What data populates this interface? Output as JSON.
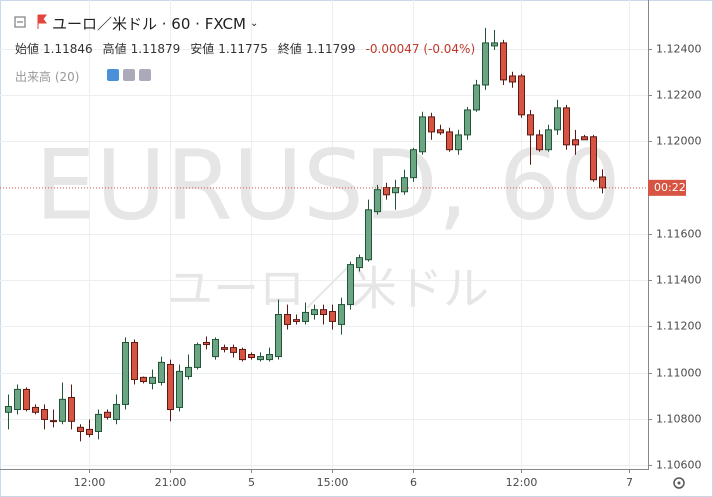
{
  "chart_data": {
    "type": "candlestick",
    "title": "ユーロ／米ドル · 60 · FXCM",
    "ohlc_legend": [
      {
        "label": "始値",
        "value": 1.11846
      },
      {
        "label": "高値",
        "value": 1.11879
      },
      {
        "label": "安値",
        "value": 1.11775
      },
      {
        "label": "終値",
        "value": 1.11799
      }
    ],
    "change": "-0.00047 (-0.04%)",
    "volume_label": "出来高 (20)",
    "watermark": "EURUSD, 60",
    "watermark_subtitle": "ユーロ／米ドル",
    "last_price": 1.11799,
    "last_price_label": "00:22",
    "up_color": "#6ba583",
    "down_color": "#d75442",
    "grid": true,
    "ylim": [
      1.10587,
      1.1259
    ],
    "yticks": [
      {
        "value": 1.106,
        "label": "1.10600"
      },
      {
        "value": 1.108,
        "label": "1.10800"
      },
      {
        "value": 1.11,
        "label": "1.11000"
      },
      {
        "value": 1.112,
        "label": "1.11200"
      },
      {
        "value": 1.114,
        "label": "1.11400"
      },
      {
        "value": 1.116,
        "label": "1.11600"
      },
      {
        "value": 1.12,
        "label": "1.12000"
      },
      {
        "value": 1.122,
        "label": "1.12200"
      },
      {
        "value": 1.124,
        "label": "1.12400"
      }
    ],
    "categories": [
      null,
      null,
      null,
      null,
      null,
      null,
      null,
      null,
      null,
      "12:00",
      null,
      null,
      null,
      null,
      null,
      null,
      null,
      null,
      "21:00",
      null,
      null,
      null,
      null,
      null,
      null,
      null,
      null,
      "5",
      null,
      null,
      null,
      null,
      null,
      null,
      null,
      null,
      "15:00",
      null,
      null,
      null,
      null,
      null,
      null,
      null,
      null,
      "6",
      null,
      null,
      null,
      null,
      null,
      null,
      null,
      null,
      null,
      null,
      null,
      "12:00",
      null,
      null,
      null,
      null,
      null,
      null,
      null,
      null,
      null,
      null,
      null,
      "7"
    ],
    "ohlc": [
      [
        1.10828,
        1.10905,
        1.10754,
        1.10853
      ],
      [
        1.1084,
        1.10948,
        1.10819,
        1.10927
      ],
      [
        1.10927,
        1.10935,
        1.10832,
        1.1084
      ],
      [
        1.10849,
        1.10862,
        1.10819,
        1.10828
      ],
      [
        1.1084,
        1.10862,
        1.10754,
        1.10797
      ],
      [
        1.10792,
        1.1084,
        1.10763,
        1.10789
      ],
      [
        1.10789,
        1.10957,
        1.10776,
        1.10884
      ],
      [
        1.10892,
        1.10948,
        1.10754,
        1.10789
      ],
      [
        1.10763,
        1.10776,
        1.10702,
        1.10745
      ],
      [
        1.10754,
        1.10797,
        1.1072,
        1.10732
      ],
      [
        1.10745,
        1.1084,
        1.10711,
        1.10819
      ],
      [
        1.10828,
        1.1084,
        1.10797,
        1.10806
      ],
      [
        1.10797,
        1.10905,
        1.10776,
        1.10862
      ],
      [
        1.10862,
        1.11152,
        1.1084,
        1.1113
      ],
      [
        1.1113,
        1.11143,
        1.10948,
        1.1097
      ],
      [
        1.10979,
        1.10983,
        1.10953,
        1.10961
      ],
      [
        1.10953,
        1.11013,
        1.10927,
        1.10979
      ],
      [
        1.10957,
        1.11069,
        1.10944,
        1.11044
      ],
      [
        1.11035,
        1.11056,
        1.10789,
        1.1084
      ],
      [
        1.10849,
        1.11035,
        1.10832,
        1.11005
      ],
      [
        1.10983,
        1.11078,
        1.1097,
        1.11022
      ],
      [
        1.11022,
        1.1113,
        1.11013,
        1.11121
      ],
      [
        1.1113,
        1.11156,
        1.111,
        1.11121
      ],
      [
        1.11069,
        1.11152,
        1.11056,
        1.11143
      ],
      [
        1.11108,
        1.11121,
        1.11087,
        1.111
      ],
      [
        1.11108,
        1.11121,
        1.11065,
        1.11087
      ],
      [
        1.111,
        1.11108,
        1.11048,
        1.11056
      ],
      [
        1.11078,
        1.11087,
        1.11056,
        1.11065
      ],
      [
        1.11056,
        1.11087,
        1.11048,
        1.11069
      ],
      [
        1.11056,
        1.11108,
        1.11048,
        1.11078
      ],
      [
        1.11069,
        1.11316,
        1.11056,
        1.11251
      ],
      [
        1.11251,
        1.11294,
        1.11186,
        1.11208
      ],
      [
        1.11229,
        1.11251,
        1.11208,
        1.11221
      ],
      [
        1.11221,
        1.11303,
        1.11208,
        1.1126
      ],
      [
        1.11251,
        1.11294,
        1.11229,
        1.11272
      ],
      [
        1.11272,
        1.11294,
        1.11208,
        1.11251
      ],
      [
        1.11264,
        1.11294,
        1.11186,
        1.11221
      ],
      [
        1.11208,
        1.11324,
        1.11164,
        1.11294
      ],
      [
        1.11294,
        1.1148,
        1.11272,
        1.11467
      ],
      [
        1.11454,
        1.1151,
        1.11437,
        1.11497
      ],
      [
        1.11488,
        1.11748,
        1.1148,
        1.11704
      ],
      [
        1.11696,
        1.11812,
        1.11683,
        1.11791
      ],
      [
        1.118,
        1.11821,
        1.11748,
        1.11769
      ],
      [
        1.11778,
        1.11834,
        1.11704,
        1.118
      ],
      [
        1.11782,
        1.11877,
        1.11769,
        1.11843
      ],
      [
        1.11843,
        1.11972,
        1.11825,
        1.11964
      ],
      [
        1.11955,
        1.12128,
        1.11942,
        1.12106
      ],
      [
        1.12106,
        1.12124,
        1.12007,
        1.12041
      ],
      [
        1.1205,
        1.12072,
        1.12028,
        1.12037
      ],
      [
        1.12041,
        1.12059,
        1.11955,
        1.11964
      ],
      [
        1.11964,
        1.1205,
        1.11942,
        1.12028
      ],
      [
        1.12028,
        1.12149,
        1.12007,
        1.12136
      ],
      [
        1.12136,
        1.12266,
        1.12128,
        1.12244
      ],
      [
        1.12244,
        1.12491,
        1.12223,
        1.12426
      ],
      [
        1.12413,
        1.12482,
        1.12396,
        1.12426
      ],
      [
        1.12426,
        1.12439,
        1.12244,
        1.12266
      ],
      [
        1.12283,
        1.12301,
        1.12232,
        1.12257
      ],
      [
        1.12283,
        1.12292,
        1.12102,
        1.12115
      ],
      [
        1.12115,
        1.12136,
        1.11899,
        1.12028
      ],
      [
        1.12028,
        1.1205,
        1.11955,
        1.11964
      ],
      [
        1.11964,
        1.12072,
        1.11955,
        1.1205
      ],
      [
        1.1205,
        1.1218,
        1.12028,
        1.12145
      ],
      [
        1.12145,
        1.12158,
        1.11964,
        1.11985
      ],
      [
        1.12007,
        1.1205,
        1.11942,
        1.11985
      ],
      [
        1.1202,
        1.12028,
        1.12007,
        1.12007
      ],
      [
        1.1202,
        1.12028,
        1.11825,
        1.11834
      ],
      [
        1.11846,
        1.11879,
        1.11775,
        1.11799
      ],
      null,
      null,
      null
    ]
  }
}
